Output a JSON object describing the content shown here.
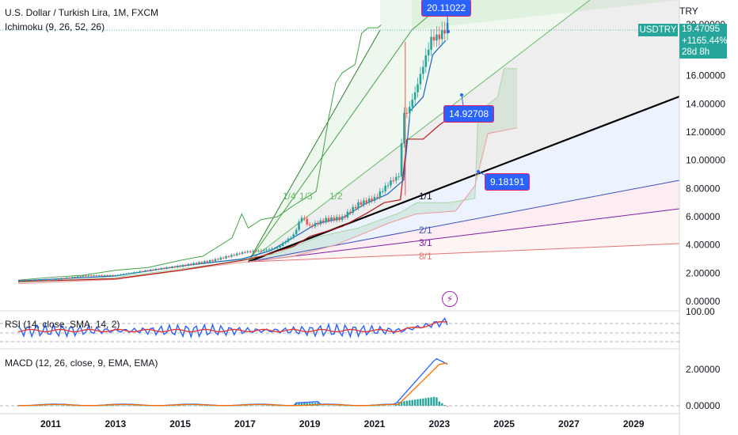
{
  "header": {
    "title": "U.S. Dollar / Turkish Lira, 1M, FXCM",
    "indicator_ichimoku": "Ichimoku (9, 26, 52, 26)",
    "currency": "TRY"
  },
  "price_badge": {
    "symbol": "USDTRY",
    "price": "19.47095",
    "change": "+1165.44%",
    "countdown": "28d 8h"
  },
  "callouts": {
    "top": "20.11022",
    "mid": "14.92708",
    "low": "9.18191"
  },
  "fan_labels": [
    "1/4",
    "1/3",
    "1/2",
    "1/1",
    "2/1",
    "3/1",
    "8/1"
  ],
  "rsi_legend": "RSI (14, close, SMA, 14, 2)",
  "macd_legend": "MACD (12, 26, close, 9, EMA, EMA)",
  "colors": {
    "up": "#26a69a",
    "down": "#ef5350",
    "axis_text": "#131722",
    "callout_bg": "#2962ff",
    "callout_border": "#e91e63"
  },
  "chart_data": {
    "type": "line",
    "title": "U.S. Dollar / Turkish Lira, 1M, FXCM",
    "price_axis": {
      "ticks": [
        "0.00000",
        "2.00000",
        "4.00000",
        "6.00000",
        "8.00000",
        "10.00000",
        "12.00000",
        "14.00000",
        "16.00000",
        "20.00000"
      ],
      "ylim": [
        0,
        20
      ],
      "unit": "TRY"
    },
    "time_axis": {
      "ticks": [
        "2011",
        "2013",
        "2015",
        "2017",
        "2019",
        "2021",
        "2023",
        "2025",
        "2027",
        "2029"
      ]
    },
    "series": [
      {
        "name": "USDTRY",
        "x": [
          2010.0,
          2011.0,
          2012.0,
          2013.0,
          2014.0,
          2015.0,
          2016.0,
          2017.0,
          2017.5,
          2018.0,
          2018.5,
          2018.75,
          2019.0,
          2019.5,
          2020.0,
          2020.5,
          2021.0,
          2021.5,
          2021.75,
          2021.92,
          2022.0,
          2022.25,
          2022.5,
          2022.75,
          2023.0,
          2023.25
        ],
        "values": [
          1.45,
          1.5,
          1.8,
          1.85,
          2.2,
          2.5,
          2.9,
          3.5,
          3.6,
          3.8,
          4.7,
          6.0,
          5.3,
          5.8,
          5.9,
          6.9,
          7.3,
          8.5,
          8.9,
          13.5,
          13.3,
          14.8,
          16.7,
          18.6,
          18.8,
          19.47
        ]
      }
    ],
    "rsi": {
      "legend": "RSI (14, close, SMA, 14, 2)",
      "axis_ticks": [
        "100.00"
      ]
    },
    "macd": {
      "legend": "MACD (12, 26, close, 9, EMA, EMA)",
      "axis_ticks": [
        "0.00000",
        "2.00000"
      ]
    },
    "fan_ratios": [
      "1/4",
      "1/3",
      "1/2",
      "1/1",
      "2/1",
      "3/1",
      "8/1"
    ],
    "annotations": [
      "20.11022",
      "14.92708",
      "9.18191"
    ],
    "last_price": "19.47095",
    "change": "+1165.44%"
  }
}
